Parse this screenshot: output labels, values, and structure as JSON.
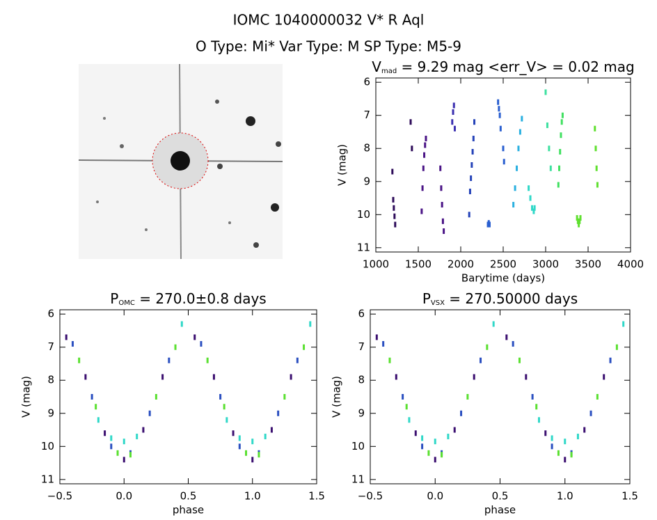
{
  "header": {
    "title": "IOMC 1040000032    V* R Aql",
    "subtitle": "O Type: Mi*  Var Type: M  SP Type: M5-9"
  },
  "chart_data": [
    {
      "type": "scatter",
      "title": {
        "main": "V",
        "sub": "mad",
        "rest": " = 9.29 mag <err_V> = 0.02 mag"
      },
      "x_label": "Barytime (days)",
      "y_label": "V (mag)",
      "xlim": [
        1000,
        4000
      ],
      "xticks": [
        1000,
        1500,
        2000,
        2500,
        3000,
        3500,
        4000
      ],
      "ylim": [
        11.13,
        5.87
      ],
      "yticks": [
        6,
        7,
        8,
        9,
        10,
        11
      ],
      "series": [
        {
          "color": "#2d0b59",
          "x": [
            1195,
            1205,
            1212,
            1220,
            1228,
            1410,
            1425
          ],
          "values": [
            8.7,
            9.55,
            9.8,
            10.05,
            10.3,
            7.2,
            8.0
          ]
        },
        {
          "color": "#4a1486",
          "x": [
            1540,
            1550,
            1560,
            1570,
            1580,
            1590,
            1760,
            1770,
            1780,
            1790,
            1800
          ],
          "values": [
            9.9,
            9.2,
            8.6,
            8.2,
            7.9,
            7.7,
            8.6,
            9.2,
            9.7,
            10.2,
            10.5
          ]
        },
        {
          "color": "#3a2fb0",
          "x": [
            1900,
            1910,
            1920,
            1930
          ],
          "values": [
            7.2,
            6.9,
            6.7,
            7.4
          ]
        },
        {
          "color": "#2442b8",
          "x": [
            2100,
            2110,
            2120,
            2130,
            2140,
            2150,
            2160
          ],
          "values": [
            10.0,
            9.3,
            8.9,
            8.5,
            8.1,
            7.7,
            7.2
          ]
        },
        {
          "color": "#2a5fd0",
          "x": [
            2320,
            2330,
            2340,
            2440,
            2450,
            2460,
            2470,
            2500,
            2510
          ],
          "values": [
            10.3,
            10.25,
            10.3,
            6.6,
            6.8,
            7.0,
            7.4,
            8.0,
            8.4
          ]
        },
        {
          "color": "#2ab0e0",
          "x": [
            2620,
            2640,
            2660,
            2680,
            2700,
            2720
          ],
          "values": [
            9.7,
            9.2,
            8.6,
            8.0,
            7.5,
            7.1
          ]
        },
        {
          "color": "#30d8c8",
          "x": [
            2800,
            2820,
            2840,
            2860,
            2870
          ],
          "values": [
            9.2,
            9.5,
            9.8,
            9.9,
            9.8
          ]
        },
        {
          "color": "#3de0a0",
          "x": [
            3000,
            3020,
            3040,
            3060
          ],
          "values": [
            6.3,
            7.3,
            8.0,
            8.6
          ]
        },
        {
          "color": "#40e060",
          "x": [
            3150,
            3160,
            3170,
            3180,
            3190,
            3200
          ],
          "values": [
            9.1,
            8.6,
            8.1,
            7.6,
            7.2,
            7.0
          ]
        },
        {
          "color": "#60e030",
          "x": [
            3370,
            3380,
            3390,
            3400,
            3410,
            3580,
            3590,
            3600,
            3610
          ],
          "values": [
            10.1,
            10.2,
            10.3,
            10.2,
            10.1,
            7.4,
            8.0,
            8.6,
            9.1
          ]
        }
      ]
    },
    {
      "type": "scatter",
      "title": {
        "main": "P",
        "sub": "OMC",
        "rest": " = 270.0±0.8 days"
      },
      "x_label": "phase",
      "y_label": "V (mag)",
      "xlim": [
        -0.5,
        1.5
      ],
      "xticks": [
        {
          "value": -0.5,
          "label": "−0.5"
        },
        {
          "value": 0,
          "label": "0.0"
        },
        {
          "value": 0.5,
          "label": "0.5"
        },
        {
          "value": 1,
          "label": "1.0"
        },
        {
          "value": 1.5,
          "label": "1.5"
        }
      ],
      "ylim": [
        11.13,
        5.87
      ],
      "yticks": [
        6,
        7,
        8,
        9,
        10,
        11
      ],
      "series": [
        {
          "color": "#3b0f70",
          "x": [
            -0.45,
            -0.3,
            -0.15,
            0.0,
            0.15,
            0.3,
            0.55,
            0.7,
            0.85,
            1.0,
            1.15,
            1.3
          ],
          "values": [
            6.7,
            7.9,
            9.6,
            10.4,
            9.5,
            7.9,
            6.7,
            7.9,
            9.6,
            10.4,
            9.5,
            7.9
          ]
        },
        {
          "color": "#2a4fc0",
          "x": [
            -0.4,
            -0.25,
            -0.1,
            0.05,
            0.2,
            0.35,
            0.6,
            0.75,
            0.9,
            1.05,
            1.2,
            1.35
          ],
          "values": [
            6.9,
            8.5,
            10.0,
            10.2,
            9.0,
            7.4,
            6.9,
            8.5,
            10.0,
            10.2,
            9.0,
            7.4
          ]
        },
        {
          "color": "#30d8c8",
          "x": [
            -0.2,
            -0.1,
            0.0,
            0.1,
            0.45,
            0.8,
            0.9,
            1.0,
            1.1,
            1.45
          ],
          "values": [
            9.2,
            9.75,
            9.85,
            9.7,
            6.3,
            9.2,
            9.75,
            9.85,
            9.7,
            6.3
          ]
        },
        {
          "color": "#5ae030",
          "x": [
            -0.35,
            -0.22,
            -0.05,
            0.05,
            0.25,
            0.4,
            0.65,
            0.78,
            0.95,
            1.05,
            1.25,
            1.4
          ],
          "values": [
            7.4,
            8.8,
            10.2,
            10.25,
            8.5,
            7.0,
            7.4,
            8.8,
            10.2,
            10.25,
            8.5,
            7.0
          ]
        }
      ]
    },
    {
      "type": "scatter",
      "title": {
        "main": "P",
        "sub": "VSX",
        "rest": " = 270.50000 days"
      },
      "x_label": "phase",
      "y_label": "V (mag)",
      "xlim": [
        -0.5,
        1.5
      ],
      "xticks": [
        {
          "value": -0.5,
          "label": "−0.5"
        },
        {
          "value": 0,
          "label": "0.0"
        },
        {
          "value": 0.5,
          "label": "0.5"
        },
        {
          "value": 1,
          "label": "1.0"
        },
        {
          "value": 1.5,
          "label": "1.5"
        }
      ],
      "ylim": [
        11.13,
        5.87
      ],
      "yticks": [
        6,
        7,
        8,
        9,
        10,
        11
      ],
      "series": [
        {
          "color": "#3b0f70",
          "x": [
            -0.45,
            -0.3,
            -0.15,
            0.0,
            0.15,
            0.3,
            0.55,
            0.7,
            0.85,
            1.0,
            1.15,
            1.3
          ],
          "values": [
            6.7,
            7.9,
            9.6,
            10.4,
            9.5,
            7.9,
            6.7,
            7.9,
            9.6,
            10.4,
            9.5,
            7.9
          ]
        },
        {
          "color": "#2a4fc0",
          "x": [
            -0.4,
            -0.25,
            -0.1,
            0.05,
            0.2,
            0.35,
            0.6,
            0.75,
            0.9,
            1.05,
            1.2,
            1.35
          ],
          "values": [
            6.9,
            8.5,
            10.0,
            10.2,
            9.0,
            7.4,
            6.9,
            8.5,
            10.0,
            10.2,
            9.0,
            7.4
          ]
        },
        {
          "color": "#30d8c8",
          "x": [
            -0.2,
            -0.1,
            0.0,
            0.1,
            0.45,
            0.8,
            0.9,
            1.0,
            1.1,
            1.45
          ],
          "values": [
            9.2,
            9.75,
            9.85,
            9.7,
            6.3,
            9.2,
            9.75,
            9.85,
            9.7,
            6.3
          ]
        },
        {
          "color": "#5ae030",
          "x": [
            -0.35,
            -0.22,
            -0.05,
            0.05,
            0.25,
            0.4,
            0.65,
            0.78,
            0.95,
            1.05,
            1.25,
            1.4
          ],
          "values": [
            7.4,
            8.8,
            10.2,
            10.25,
            8.5,
            7.0,
            7.4,
            8.8,
            10.2,
            10.25,
            8.5,
            7.0
          ]
        }
      ]
    }
  ]
}
